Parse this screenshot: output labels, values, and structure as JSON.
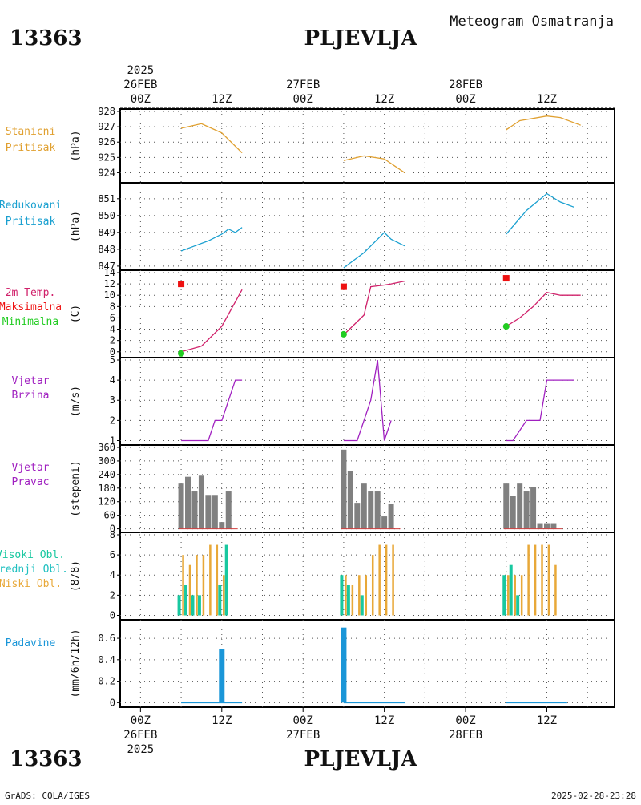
{
  "header": {
    "station_id": "13363",
    "station_name": "PLJEVLJA",
    "chart_title": "Meteogram Osmatranja"
  },
  "footer": {
    "station_id": "13363",
    "station_name": "PLJEVLJA",
    "credit": "GrADS: COLA/IGES",
    "timestamp": "2025-02-28-23:28"
  },
  "time_axis": {
    "year": "2025",
    "days": [
      "26FEB",
      "27FEB",
      "28FEB"
    ],
    "tick_labels": [
      "00Z",
      "12Z",
      "00Z",
      "12Z",
      "00Z",
      "12Z"
    ],
    "tick_hours": [
      0,
      12,
      24,
      36,
      48,
      60
    ],
    "range_hours": [
      -3,
      70
    ]
  },
  "colors": {
    "pressure": "#e0a030",
    "reduced": "#1aa0d0",
    "temp_label": "#d0206a",
    "temp_max": "#ee1111",
    "temp_min": "#22cc22",
    "wind": "#a020c0",
    "wind_dir_bar": "#808080",
    "cloud_high": "#18c8a0",
    "cloud_low": "#e8a838",
    "cloud_mid": "#20c0c0",
    "precip": "#1a96d8"
  },
  "chart_data": [
    {
      "type": "line",
      "id": "station_pressure",
      "label_lines": [
        "Stanicni",
        "Pritisak"
      ],
      "ylabel": "(hPa)",
      "ylim": [
        923.5,
        928
      ],
      "yticks": [
        924,
        925,
        926,
        927,
        928
      ],
      "series": [
        {
          "x": [
            6,
            9,
            12,
            15
          ],
          "y": [
            926.9,
            927.2,
            926.6,
            925.3
          ]
        },
        {
          "x": [
            30,
            33,
            36,
            39
          ],
          "y": [
            924.8,
            925.1,
            924.9,
            924.0
          ]
        },
        {
          "x": [
            54,
            56,
            60,
            62,
            65
          ],
          "y": [
            926.8,
            927.4,
            927.7,
            927.6,
            927.1
          ]
        }
      ]
    },
    {
      "type": "line",
      "id": "reduced_pressure",
      "label_lines": [
        "Redukovani",
        "Pritisak"
      ],
      "ylabel": "(hPa)",
      "ylim": [
        846.9,
        851.8
      ],
      "yticks": [
        847,
        848,
        849,
        850,
        851
      ],
      "series": [
        {
          "x": [
            6,
            8,
            10,
            12,
            13,
            14,
            15
          ],
          "y": [
            847.9,
            848.2,
            848.5,
            848.9,
            849.2,
            849.0,
            849.3
          ]
        },
        {
          "x": [
            30,
            33,
            36,
            37,
            39
          ],
          "y": [
            846.9,
            847.8,
            849.0,
            848.6,
            848.2
          ]
        },
        {
          "x": [
            54,
            57,
            60,
            62,
            64
          ],
          "y": [
            848.9,
            850.3,
            851.3,
            850.8,
            850.5
          ]
        }
      ]
    },
    {
      "type": "line",
      "id": "temperature",
      "label_lines": [
        "2m Temp.",
        "Maksimalna",
        "Minimalna"
      ],
      "ylabel": "(C)",
      "ylim": [
        -0.6,
        14
      ],
      "yticks": [
        0,
        2,
        4,
        6,
        8,
        10,
        12,
        14
      ],
      "series": [
        {
          "x": [
            6,
            9,
            12,
            15
          ],
          "y": [
            0,
            1,
            4.5,
            11
          ]
        },
        {
          "x": [
            30,
            33,
            34,
            36,
            37,
            39
          ],
          "y": [
            3,
            6.5,
            11.5,
            11.8,
            12,
            12.5
          ]
        },
        {
          "x": [
            54,
            56,
            58,
            60,
            62,
            65
          ],
          "y": [
            4.5,
            6,
            8,
            10.5,
            10,
            10
          ]
        }
      ],
      "maxima": [
        {
          "x": 6,
          "y": 12
        },
        {
          "x": 30,
          "y": 11.5
        },
        {
          "x": 54,
          "y": 13
        }
      ],
      "minima": [
        {
          "x": 6,
          "y": -0.3
        },
        {
          "x": 30,
          "y": 3.1
        },
        {
          "x": 54,
          "y": 4.5
        }
      ]
    },
    {
      "type": "line",
      "id": "wind_speed",
      "label_lines": [
        "Vjetar",
        "Brzina"
      ],
      "ylabel": "(m/s)",
      "ylim": [
        0.9,
        5
      ],
      "yticks": [
        1,
        2,
        3,
        4,
        5
      ],
      "series": [
        {
          "x": [
            6,
            10,
            11,
            12,
            14,
            15
          ],
          "y": [
            1,
            1,
            2,
            2,
            4,
            4
          ]
        },
        {
          "x": [
            30,
            32,
            34,
            35,
            36,
            37
          ],
          "y": [
            1,
            1,
            3,
            5,
            1,
            2
          ]
        },
        {
          "x": [
            54,
            55,
            57,
            59,
            60,
            62,
            64
          ],
          "y": [
            1,
            1,
            2,
            2,
            4,
            4,
            4
          ]
        }
      ]
    },
    {
      "type": "bar",
      "id": "wind_direction",
      "label_lines": [
        "Vjetar",
        "Pravac"
      ],
      "ylabel": "(stepeni)",
      "ylim": [
        -5,
        360
      ],
      "yticks": [
        0,
        60,
        120,
        180,
        240,
        300,
        360
      ],
      "x": [
        6,
        7,
        8,
        9,
        10,
        11,
        12,
        13,
        30,
        31,
        32,
        33,
        34,
        35,
        36,
        37,
        54,
        55,
        56,
        57,
        58,
        59,
        60,
        61
      ],
      "values": [
        200,
        230,
        165,
        235,
        150,
        150,
        30,
        165,
        350,
        255,
        115,
        200,
        165,
        165,
        55,
        110,
        200,
        145,
        200,
        165,
        185,
        25,
        25,
        25
      ]
    },
    {
      "type": "bar",
      "id": "clouds",
      "label_lines": [
        "Visoki Obl.",
        "Srednji Obl.",
        "Niski Obl."
      ],
      "ylabel": "(8/8)",
      "ylim": [
        -0.2,
        8
      ],
      "yticks": [
        0,
        2,
        4,
        6,
        8
      ],
      "x": [
        6,
        7,
        8,
        9,
        10,
        11,
        12,
        13,
        30,
        31,
        32,
        33,
        34,
        35,
        36,
        37,
        54,
        55,
        56,
        57,
        58,
        59,
        60,
        61
      ],
      "series": [
        {
          "name": "Visoki Obl.",
          "values": [
            2,
            3,
            2,
            2,
            0,
            0,
            3,
            7,
            4,
            3,
            0,
            2,
            0,
            0,
            0,
            0,
            4,
            5,
            2,
            0,
            0,
            0,
            0,
            0
          ]
        },
        {
          "name": "Srednji Obl.",
          "values": [
            0,
            0,
            0,
            0,
            0,
            0,
            0,
            0,
            0,
            0,
            0,
            0,
            0,
            0,
            0,
            0,
            0,
            0,
            0,
            0,
            0,
            0,
            0,
            0
          ]
        },
        {
          "name": "Niski Obl.",
          "values": [
            6,
            5,
            6,
            6,
            7,
            7,
            4,
            0,
            4,
            3,
            4,
            4,
            6,
            7,
            7,
            7,
            4,
            4,
            4,
            7,
            7,
            7,
            7,
            5
          ]
        }
      ]
    },
    {
      "type": "bar",
      "id": "precipitation",
      "label_lines": [
        "Padavine"
      ],
      "ylabel": "(mm/6h/12h)",
      "ylim": [
        -0.02,
        0.75
      ],
      "yticks": [
        0,
        0.2,
        0.4,
        0.6
      ],
      "ytick_labels": [
        "0",
        "0.2",
        "0.4",
        "0.6"
      ],
      "bars": [
        {
          "x": 12,
          "value": 0.5
        },
        {
          "x": 30,
          "value": 0.7
        }
      ],
      "trace_segments": [
        [
          6,
          15
        ],
        [
          30,
          39
        ],
        [
          54,
          63
        ]
      ]
    }
  ]
}
